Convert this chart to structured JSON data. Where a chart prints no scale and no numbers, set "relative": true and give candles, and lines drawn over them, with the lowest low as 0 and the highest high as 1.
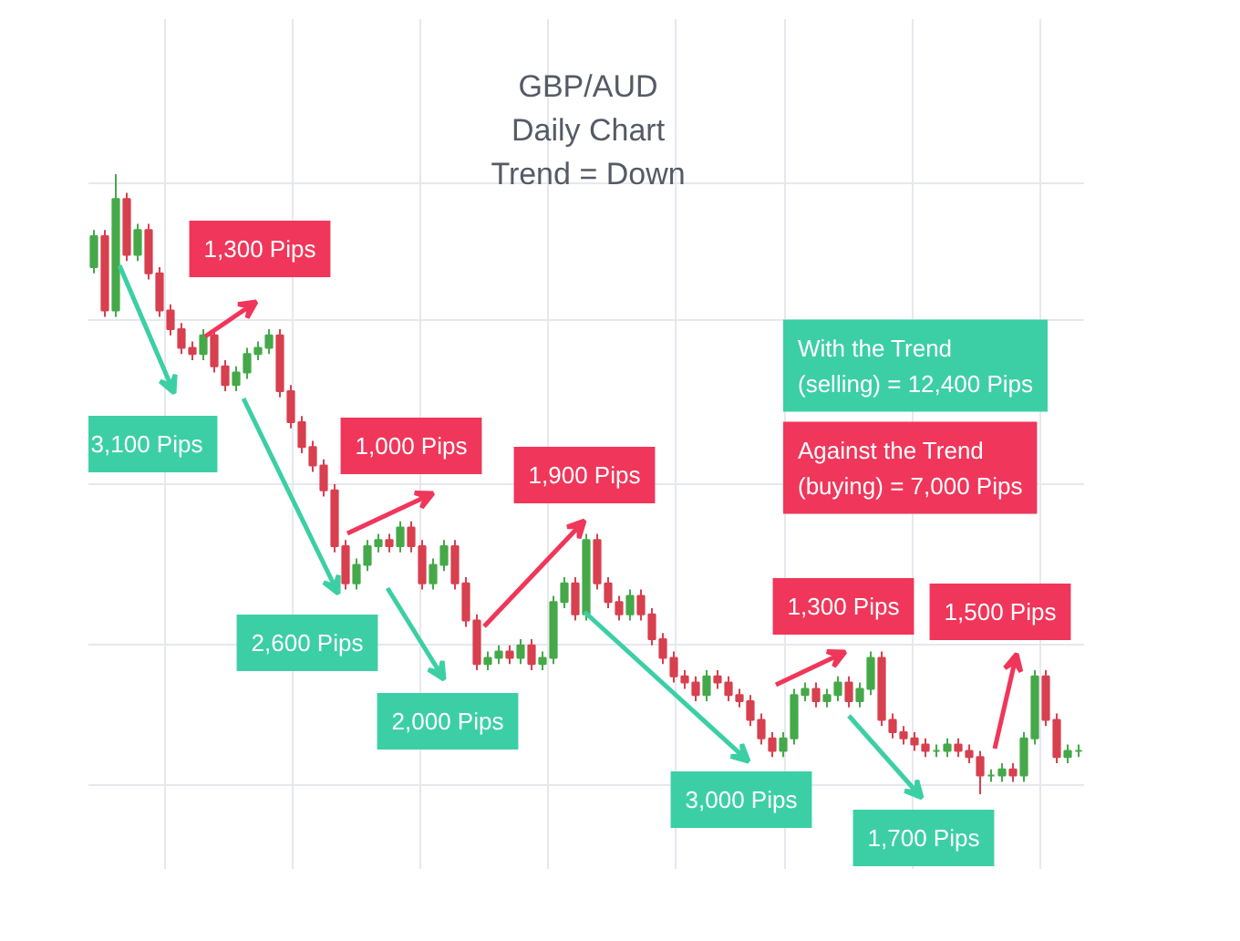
{
  "chart_data": {
    "type": "candlestick",
    "title": "GBP/AUD",
    "subtitle": "Daily Chart\nTrend = Down",
    "relative": true,
    "grid": true,
    "tick_labels": false,
    "categories": [
      null,
      null,
      null,
      null,
      null,
      null,
      null,
      null,
      null,
      null,
      null,
      null,
      null,
      null,
      null,
      null,
      null,
      null,
      null,
      null,
      null,
      null,
      null,
      null,
      null,
      null,
      null,
      null,
      null,
      null,
      null,
      null,
      null,
      null,
      null,
      null,
      null,
      null,
      null,
      null,
      null,
      null,
      null,
      null,
      null,
      null,
      null,
      null,
      null,
      null,
      null,
      null,
      null,
      null,
      null,
      null,
      null,
      null,
      null,
      null,
      null,
      null,
      null,
      null,
      null,
      null,
      null,
      null,
      null,
      null,
      null,
      null,
      null,
      null,
      null,
      null,
      null,
      null,
      null,
      null,
      null,
      null,
      null,
      null,
      null,
      null,
      null,
      null,
      null,
      null,
      null
    ],
    "ohlc": [
      [
        0.85,
        0.91,
        0.84,
        0.9
      ],
      [
        0.9,
        0.91,
        0.77,
        0.78
      ],
      [
        0.78,
        1.0,
        0.77,
        0.96
      ],
      [
        0.96,
        0.97,
        0.86,
        0.87
      ],
      [
        0.87,
        0.92,
        0.86,
        0.91
      ],
      [
        0.91,
        0.92,
        0.83,
        0.84
      ],
      [
        0.84,
        0.85,
        0.77,
        0.78
      ],
      [
        0.78,
        0.79,
        0.74,
        0.75
      ],
      [
        0.75,
        0.76,
        0.71,
        0.72
      ],
      [
        0.72,
        0.73,
        0.7,
        0.71
      ],
      [
        0.71,
        0.75,
        0.7,
        0.74
      ],
      [
        0.74,
        0.75,
        0.68,
        0.69
      ],
      [
        0.69,
        0.7,
        0.65,
        0.66
      ],
      [
        0.66,
        0.69,
        0.65,
        0.68
      ],
      [
        0.68,
        0.72,
        0.67,
        0.71
      ],
      [
        0.71,
        0.73,
        0.7,
        0.72
      ],
      [
        0.72,
        0.75,
        0.71,
        0.74
      ],
      [
        0.74,
        0.75,
        0.64,
        0.65
      ],
      [
        0.65,
        0.66,
        0.59,
        0.6
      ],
      [
        0.6,
        0.61,
        0.55,
        0.56
      ],
      [
        0.56,
        0.57,
        0.52,
        0.53
      ],
      [
        0.53,
        0.54,
        0.48,
        0.49
      ],
      [
        0.49,
        0.5,
        0.39,
        0.4
      ],
      [
        0.4,
        0.41,
        0.33,
        0.34
      ],
      [
        0.34,
        0.38,
        0.33,
        0.37
      ],
      [
        0.37,
        0.41,
        0.36,
        0.4
      ],
      [
        0.4,
        0.42,
        0.39,
        0.41
      ],
      [
        0.41,
        0.42,
        0.39,
        0.4
      ],
      [
        0.4,
        0.44,
        0.39,
        0.43
      ],
      [
        0.43,
        0.44,
        0.39,
        0.4
      ],
      [
        0.4,
        0.41,
        0.33,
        0.34
      ],
      [
        0.34,
        0.38,
        0.33,
        0.37
      ],
      [
        0.37,
        0.41,
        0.36,
        0.4
      ],
      [
        0.4,
        0.41,
        0.33,
        0.34
      ],
      [
        0.34,
        0.35,
        0.27,
        0.28
      ],
      [
        0.28,
        0.29,
        0.2,
        0.21
      ],
      [
        0.21,
        0.23,
        0.2,
        0.22
      ],
      [
        0.22,
        0.24,
        0.21,
        0.23
      ],
      [
        0.23,
        0.24,
        0.21,
        0.22
      ],
      [
        0.22,
        0.25,
        0.21,
        0.24
      ],
      [
        0.24,
        0.25,
        0.2,
        0.21
      ],
      [
        0.21,
        0.23,
        0.2,
        0.22
      ],
      [
        0.22,
        0.32,
        0.21,
        0.31
      ],
      [
        0.31,
        0.35,
        0.3,
        0.34
      ],
      [
        0.34,
        0.35,
        0.28,
        0.29
      ],
      [
        0.29,
        0.42,
        0.28,
        0.41
      ],
      [
        0.41,
        0.42,
        0.33,
        0.34
      ],
      [
        0.34,
        0.35,
        0.3,
        0.31
      ],
      [
        0.31,
        0.32,
        0.28,
        0.29
      ],
      [
        0.29,
        0.33,
        0.28,
        0.32
      ],
      [
        0.32,
        0.33,
        0.28,
        0.29
      ],
      [
        0.29,
        0.3,
        0.24,
        0.25
      ],
      [
        0.25,
        0.26,
        0.21,
        0.22
      ],
      [
        0.22,
        0.23,
        0.18,
        0.19
      ],
      [
        0.19,
        0.2,
        0.17,
        0.18
      ],
      [
        0.18,
        0.19,
        0.15,
        0.16
      ],
      [
        0.16,
        0.2,
        0.15,
        0.19
      ],
      [
        0.19,
        0.2,
        0.17,
        0.18
      ],
      [
        0.18,
        0.19,
        0.15,
        0.16
      ],
      [
        0.16,
        0.17,
        0.14,
        0.15
      ],
      [
        0.15,
        0.16,
        0.11,
        0.12
      ],
      [
        0.12,
        0.13,
        0.08,
        0.09
      ],
      [
        0.09,
        0.1,
        0.06,
        0.07
      ],
      [
        0.07,
        0.1,
        0.06,
        0.09
      ],
      [
        0.09,
        0.17,
        0.08,
        0.16
      ],
      [
        0.16,
        0.18,
        0.15,
        0.17
      ],
      [
        0.17,
        0.18,
        0.14,
        0.15
      ],
      [
        0.15,
        0.17,
        0.14,
        0.16
      ],
      [
        0.16,
        0.19,
        0.15,
        0.18
      ],
      [
        0.18,
        0.19,
        0.14,
        0.15
      ],
      [
        0.15,
        0.18,
        0.14,
        0.17
      ],
      [
        0.17,
        0.23,
        0.16,
        0.22
      ],
      [
        0.22,
        0.23,
        0.11,
        0.12
      ],
      [
        0.12,
        0.13,
        0.09,
        0.1
      ],
      [
        0.1,
        0.11,
        0.08,
        0.09
      ],
      [
        0.09,
        0.1,
        0.07,
        0.08
      ],
      [
        0.08,
        0.09,
        0.06,
        0.07
      ],
      [
        0.07,
        0.08,
        0.06,
        0.07
      ],
      [
        0.07,
        0.09,
        0.06,
        0.08
      ],
      [
        0.08,
        0.09,
        0.06,
        0.07
      ],
      [
        0.07,
        0.08,
        0.05,
        0.06
      ],
      [
        0.06,
        0.07,
        0.0,
        0.03
      ],
      [
        0.03,
        0.04,
        0.02,
        0.03
      ],
      [
        0.03,
        0.05,
        0.02,
        0.04
      ],
      [
        0.04,
        0.05,
        0.02,
        0.03
      ],
      [
        0.03,
        0.1,
        0.02,
        0.09
      ],
      [
        0.09,
        0.2,
        0.08,
        0.19
      ],
      [
        0.19,
        0.2,
        0.11,
        0.12
      ],
      [
        0.12,
        0.13,
        0.05,
        0.06
      ],
      [
        0.06,
        0.08,
        0.05,
        0.07
      ],
      [
        0.07,
        0.08,
        0.06,
        0.07
      ]
    ],
    "annotations": [
      "1,300 Pips",
      "3,100 Pips",
      "1,000 Pips",
      "2,600 Pips",
      "1,900 Pips",
      "2,000 Pips",
      "1,300 Pips",
      "3,000 Pips",
      "1,500 Pips",
      "1,700 Pips",
      "With the Trend\n(selling) = 12,400 Pips",
      "Against the Trend\n(buying) = 7,000 Pips"
    ]
  }
}
